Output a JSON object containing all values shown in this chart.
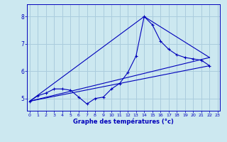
{
  "xlabel": "Graphe des températures (°c)",
  "background_color": "#cce8f0",
  "grid_color": "#aaccdd",
  "line_color": "#0000bb",
  "x_ticks": [
    0,
    1,
    2,
    3,
    4,
    5,
    6,
    7,
    8,
    9,
    10,
    11,
    12,
    13,
    14,
    15,
    16,
    17,
    18,
    19,
    20,
    21,
    22,
    23
  ],
  "y_ticks": [
    5,
    6,
    7,
    8
  ],
  "xlim": [
    -0.3,
    23.3
  ],
  "ylim": [
    4.55,
    8.45
  ],
  "main_series": {
    "x": [
      0,
      1,
      2,
      3,
      4,
      5,
      6,
      7,
      8,
      9,
      10,
      11,
      12,
      13,
      14,
      15,
      16,
      17,
      18,
      19,
      20,
      21,
      22
    ],
    "y": [
      4.9,
      5.1,
      5.2,
      5.35,
      5.35,
      5.3,
      5.05,
      4.8,
      5.0,
      5.05,
      5.35,
      5.55,
      5.95,
      6.55,
      8.0,
      7.7,
      7.1,
      6.8,
      6.6,
      6.5,
      6.45,
      6.4,
      6.2
    ]
  },
  "straight_lines": [
    {
      "x": [
        0,
        22
      ],
      "y": [
        4.9,
        6.2
      ]
    },
    {
      "x": [
        0,
        14,
        22
      ],
      "y": [
        4.9,
        8.0,
        6.5
      ]
    },
    {
      "x": [
        0,
        22
      ],
      "y": [
        4.9,
        6.5
      ]
    }
  ]
}
